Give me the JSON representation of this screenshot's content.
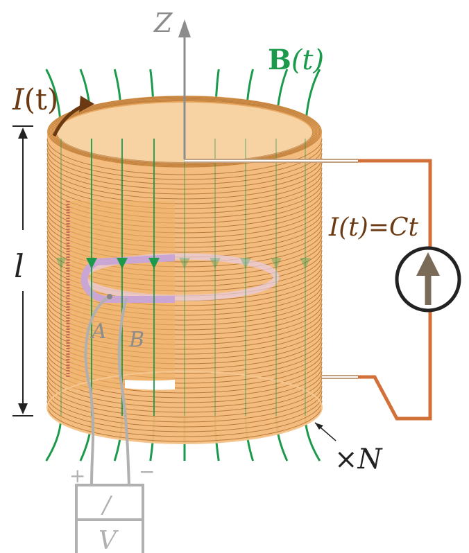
{
  "diagram": {
    "z_axis_label": "Z",
    "field_label_symbol": "B",
    "field_label_arg": "(t)",
    "current_label_symbol": "I",
    "current_label_arg": "(t)",
    "length_label": "l",
    "current_law_label": "I(t)=Ct",
    "turns_label": "×N",
    "probe_left_label": "A",
    "probe_right_label": "B",
    "plus_sign": "+",
    "minus_sign": "−",
    "meter_top_label": "/",
    "meter_bottom_label": "V"
  },
  "colors": {
    "coil_body": "#f3b877",
    "coil_lines": "#a86a2a",
    "field_lines": "#1a9a4a",
    "circuit_wire": "#d2703a",
    "current_label": "#6b3a12",
    "axis": "#8c8c8c",
    "loop": "#c9a6d3",
    "meter": "#b0b0b0",
    "source_arrow": "#7a6a58"
  }
}
